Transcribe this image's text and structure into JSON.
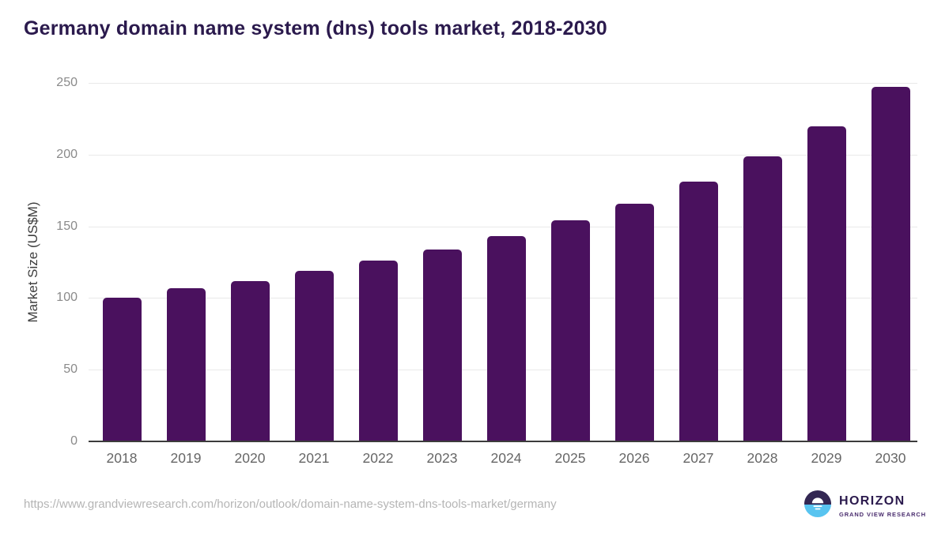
{
  "page": {
    "source_url": "https://www.grandviewresearch.com/horizon/outlook/domain-name-system-dns-tools-market/germany"
  },
  "logo": {
    "brand": "HORIZON",
    "subbrand": "GRAND VIEW RESEARCH",
    "icon": "horizon-sunset-circle-icon",
    "colors": {
      "circle_top": "#332753",
      "circle_bottom": "#58c4f0",
      "sun": "#ffffff",
      "brand_text": "#2b1a4d",
      "subbrand_text": "#4a2d6e"
    }
  },
  "chart_data": {
    "type": "bar",
    "title": "Germany domain name system (dns) tools market, 2018-2030",
    "categories": [
      "2018",
      "2019",
      "2020",
      "2021",
      "2022",
      "2023",
      "2024",
      "2025",
      "2026",
      "2027",
      "2028",
      "2029",
      "2030"
    ],
    "values": [
      100,
      107,
      112,
      119,
      126,
      134,
      143,
      154,
      166,
      181,
      199,
      220,
      247
    ],
    "xlabel": "",
    "ylabel": "Market Size (US$M)",
    "ylim": [
      0,
      250
    ],
    "yticks": [
      0,
      50,
      100,
      150,
      200,
      250
    ],
    "grid": true,
    "legend": false,
    "bar_color": "#4a115e"
  },
  "colors": {
    "background": "#ffffff",
    "title_text": "#2b1a4d",
    "ytick_text": "#8a8a8a",
    "xtick_text": "#666666",
    "ylabel_text": "#3d3d3d",
    "gridline": "#e9e9e9",
    "axis_line": "#3c3c3c",
    "footer_text": "#b5b5b5"
  }
}
